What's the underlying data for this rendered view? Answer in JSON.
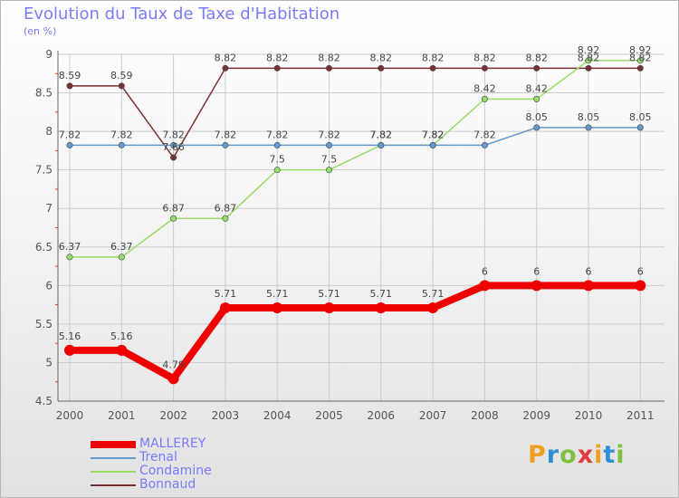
{
  "title": "Evolution du Taux de Taxe d'Habitation",
  "subtitle": "(en %)",
  "colors": {
    "axis_text": "#555555",
    "title_text": "#7a7aff",
    "grid": "#cccccc"
  },
  "logo": {
    "letters": [
      "P",
      "r",
      "o",
      "x",
      "i",
      "t",
      "i"
    ],
    "colors": [
      "#f0a020",
      "#2f8fd6",
      "#7fc241",
      "#e23c3c",
      "#f0a020",
      "#2f8fd6",
      "#7fc241"
    ]
  },
  "chart_data": {
    "type": "line",
    "title": "Evolution du Taux de Taxe d'Habitation",
    "subtitle": "(en %)",
    "x": [
      "2000",
      "2001",
      "2002",
      "2003",
      "2004",
      "2005",
      "2006",
      "2007",
      "2008",
      "2009",
      "2010",
      "2011"
    ],
    "ylim": [
      4.5,
      9
    ],
    "yticks": [
      "4.5",
      "5",
      "5.5",
      "6",
      "6.5",
      "7",
      "7.5",
      "8",
      "8.5",
      "9"
    ],
    "grid": true,
    "legend_position": "bottom-left",
    "series": [
      {
        "name": "MALLEREY",
        "color": "#ee0000",
        "width": 8,
        "values": [
          5.16,
          5.16,
          4.79,
          5.71,
          5.71,
          5.71,
          5.71,
          5.71,
          6,
          6,
          6,
          6
        ],
        "labels": [
          "5.16",
          "5.16",
          "4.79",
          "5.71",
          "5.71",
          "5.71",
          "5.71",
          "5.71",
          "6",
          "6",
          "6",
          "6"
        ]
      },
      {
        "name": "Trenal",
        "color": "#6699cc",
        "width": 1.5,
        "values": [
          7.82,
          7.82,
          7.82,
          7.82,
          7.82,
          7.82,
          7.82,
          7.82,
          7.82,
          8.05,
          8.05,
          8.05
        ],
        "labels": [
          "7.82",
          "7.82",
          "7.82",
          "7.82",
          "7.82",
          "7.82",
          "7.82",
          "7.82",
          "7.82",
          "8.05",
          "8.05",
          "8.05"
        ]
      },
      {
        "name": "Condamine",
        "color": "#99dd66",
        "width": 1.5,
        "values": [
          6.37,
          6.37,
          6.87,
          6.87,
          7.5,
          7.5,
          7.82,
          7.82,
          8.42,
          8.42,
          8.92,
          8.92
        ],
        "labels": [
          "6.37",
          "6.37",
          "6.87",
          "6.87",
          "7.5",
          "7.5",
          "7.82",
          "7.82",
          "8.42",
          "8.42",
          "8.92",
          "8.92"
        ]
      },
      {
        "name": "Bonnaud",
        "color": "#7a3030",
        "width": 1.5,
        "values": [
          8.59,
          8.59,
          7.66,
          8.82,
          8.82,
          8.82,
          8.82,
          8.82,
          8.82,
          8.82,
          8.82,
          8.82
        ],
        "labels": [
          "8.59",
          "8.59",
          "7.66",
          "8.82",
          "8.82",
          "8.82",
          "8.82",
          "8.82",
          "8.82",
          "8.82",
          "8.82",
          "8.82"
        ]
      }
    ]
  }
}
